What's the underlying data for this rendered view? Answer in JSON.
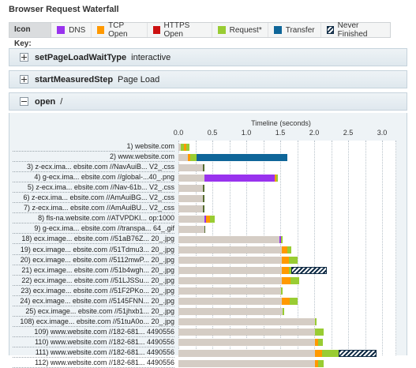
{
  "page_title": "Browser Request Waterfall",
  "icon_key": {
    "label": "Icon Key:",
    "items": [
      {
        "name": "DNS",
        "color": "#9933ee"
      },
      {
        "name": "TCP Open",
        "color": "#ff9900"
      },
      {
        "name": "HTTPS Open",
        "color": "#cc1111"
      },
      {
        "name": "Request*",
        "color": "#99cc33"
      },
      {
        "name": "Transfer",
        "color": "#0f6699"
      },
      {
        "name": "Never Finished",
        "color": "hatch"
      }
    ]
  },
  "panels": [
    {
      "name": "setPageLoadWaitType",
      "value": "interactive",
      "expanded": false
    },
    {
      "name": "startMeasuredStep",
      "value": "Page Load",
      "expanded": false
    },
    {
      "name": "open",
      "value": "/",
      "expanded": true
    }
  ],
  "colors": {
    "wait": "#d5cdc5"
  },
  "chart_data": {
    "type": "waterfall",
    "title": "Timeline (seconds)",
    "x_ticks": [
      "0.0",
      "0.5",
      "1.0",
      "1.5",
      "2.0",
      "2.5",
      "3.0"
    ],
    "xlim": [
      0,
      3.2
    ],
    "rows": [
      {
        "label": "1) website.com",
        "segments": [
          {
            "kind": "wait",
            "start": 0,
            "end": 0.03
          },
          {
            "kind": "request",
            "start": 0.03,
            "end": 0.08
          },
          {
            "kind": "tcp",
            "start": 0.08,
            "end": 0.12
          },
          {
            "kind": "request",
            "start": 0.12,
            "end": 0.16
          }
        ]
      },
      {
        "label": "2) www.website.com",
        "segments": [
          {
            "kind": "wait",
            "start": 0,
            "end": 0.14
          },
          {
            "kind": "tcp",
            "start": 0.14,
            "end": 0.18
          },
          {
            "kind": "request",
            "start": 0.18,
            "end": 0.27
          },
          {
            "kind": "transfer",
            "start": 0.27,
            "end": 1.61
          }
        ]
      },
      {
        "label": "3) z-ecx.ima... ebsite.com //NavAuiB... V2_.css",
        "segments": [
          {
            "kind": "wait",
            "start": 0,
            "end": 0.36
          },
          {
            "kind": "dark",
            "start": 0.36,
            "end": 0.38
          }
        ]
      },
      {
        "label": "4) g-ecx.ima... ebsite.com //global-...40_.png",
        "segments": [
          {
            "kind": "wait",
            "start": 0,
            "end": 0.38
          },
          {
            "kind": "dns",
            "start": 0.38,
            "end": 1.42
          },
          {
            "kind": "tcp",
            "start": 1.42,
            "end": 1.44
          },
          {
            "kind": "request",
            "start": 1.44,
            "end": 1.47
          }
        ]
      },
      {
        "label": "5) z-ecx.ima... ebsite.com //Nav-61b... V2_.css",
        "segments": [
          {
            "kind": "wait",
            "start": 0,
            "end": 0.36
          },
          {
            "kind": "dark",
            "start": 0.36,
            "end": 0.38
          }
        ]
      },
      {
        "label": "6) z-ecx.ima... ebsite.com //AmAuiBG... V2_.css",
        "segments": [
          {
            "kind": "wait",
            "start": 0,
            "end": 0.36
          },
          {
            "kind": "dark",
            "start": 0.36,
            "end": 0.38
          }
        ]
      },
      {
        "label": "7) z-ecx.ima... ebsite.com //AmAuiBU... V2_.css",
        "segments": [
          {
            "kind": "wait",
            "start": 0,
            "end": 0.36
          },
          {
            "kind": "dark",
            "start": 0.36,
            "end": 0.38
          }
        ]
      },
      {
        "label": "8) fls-na.website.com //ATVPDKI... op:1000",
        "segments": [
          {
            "kind": "wait",
            "start": 0,
            "end": 0.38
          },
          {
            "kind": "dns",
            "start": 0.38,
            "end": 0.41
          },
          {
            "kind": "tcp",
            "start": 0.41,
            "end": 0.46
          },
          {
            "kind": "request",
            "start": 0.46,
            "end": 0.54
          }
        ]
      },
      {
        "label": "9) g-ecx.ima... ebsite.com //transpa... 64_.gif",
        "segments": [
          {
            "kind": "wait",
            "start": 0,
            "end": 0.38
          },
          {
            "kind": "dark",
            "start": 0.38,
            "end": 0.4
          }
        ]
      },
      {
        "label": "18) ecx.image... ebsite.com //51aB76Z... 20_.jpg",
        "segments": [
          {
            "kind": "wait",
            "start": 0,
            "end": 1.49
          },
          {
            "kind": "dns",
            "start": 1.49,
            "end": 1.51
          },
          {
            "kind": "request",
            "start": 1.51,
            "end": 1.54
          }
        ]
      },
      {
        "label": "19) ecx.image... ebsite.com //51Tdmu3... 20_.jpg",
        "segments": [
          {
            "kind": "wait",
            "start": 0,
            "end": 1.52
          },
          {
            "kind": "tcp",
            "start": 1.52,
            "end": 1.6
          },
          {
            "kind": "request",
            "start": 1.6,
            "end": 1.66
          }
        ]
      },
      {
        "label": "20) ecx.image... ebsite.com //5112mwP... 20_.jpg",
        "segments": [
          {
            "kind": "wait",
            "start": 0,
            "end": 1.52
          },
          {
            "kind": "tcp",
            "start": 1.52,
            "end": 1.63
          },
          {
            "kind": "request",
            "start": 1.63,
            "end": 1.76
          }
        ]
      },
      {
        "label": "21) ecx.image... ebsite.com //51b4wgh... 20_.jpg",
        "segments": [
          {
            "kind": "wait",
            "start": 0,
            "end": 1.52
          },
          {
            "kind": "tcp",
            "start": 1.52,
            "end": 1.63
          },
          {
            "kind": "request",
            "start": 1.63,
            "end": 1.66
          },
          {
            "kind": "never",
            "start": 1.66,
            "end": 2.19
          }
        ]
      },
      {
        "label": "22) ecx.image... ebsite.com //51LJSSu... 20_.jpg",
        "segments": [
          {
            "kind": "wait",
            "start": 0,
            "end": 1.52
          },
          {
            "kind": "tcp",
            "start": 1.52,
            "end": 1.65
          },
          {
            "kind": "request",
            "start": 1.65,
            "end": 1.78
          }
        ]
      },
      {
        "label": "23) ecx.image... ebsite.com //51F2PKo... 20_.jpg",
        "segments": [
          {
            "kind": "wait",
            "start": 0,
            "end": 1.51
          },
          {
            "kind": "request",
            "start": 1.51,
            "end": 1.53
          }
        ]
      },
      {
        "label": "24) ecx.image... ebsite.com //5145FNN... 20_.jpg",
        "segments": [
          {
            "kind": "wait",
            "start": 0,
            "end": 1.52
          },
          {
            "kind": "tcp",
            "start": 1.52,
            "end": 1.64
          },
          {
            "kind": "request",
            "start": 1.64,
            "end": 1.76
          }
        ]
      },
      {
        "label": "25) ecx.image... ebsite.com //51jhxb1... 20_.jpg",
        "segments": [
          {
            "kind": "wait",
            "start": 0,
            "end": 1.53
          },
          {
            "kind": "request",
            "start": 1.53,
            "end": 1.56
          }
        ]
      },
      {
        "label": "108) ecx.image... ebsite.com //51tuA0o... 20_.jpg",
        "segments": [
          {
            "kind": "wait",
            "start": 0,
            "end": 2.01
          },
          {
            "kind": "request",
            "start": 2.01,
            "end": 2.04
          }
        ]
      },
      {
        "label": "109) www.website.com //182-681... 4490556",
        "segments": [
          {
            "kind": "wait",
            "start": 0,
            "end": 2.01
          },
          {
            "kind": "request",
            "start": 2.01,
            "end": 2.14
          }
        ]
      },
      {
        "label": "110) www.website.com //182-681... 4490556",
        "segments": [
          {
            "kind": "wait",
            "start": 0,
            "end": 2.01
          },
          {
            "kind": "tcp",
            "start": 2.01,
            "end": 2.06
          },
          {
            "kind": "request",
            "start": 2.06,
            "end": 2.13
          }
        ]
      },
      {
        "label": "111) www.website.com //182-681... 4490556",
        "segments": [
          {
            "kind": "wait",
            "start": 0,
            "end": 2.01
          },
          {
            "kind": "tcp",
            "start": 2.01,
            "end": 2.12
          },
          {
            "kind": "request",
            "start": 2.12,
            "end": 2.36
          },
          {
            "kind": "never",
            "start": 2.36,
            "end": 2.92
          }
        ]
      },
      {
        "label": "112) www.website.com //182-681... 4490556",
        "segments": [
          {
            "kind": "wait",
            "start": 0,
            "end": 2.01
          },
          {
            "kind": "tcp",
            "start": 2.01,
            "end": 2.06
          },
          {
            "kind": "request",
            "start": 2.06,
            "end": 2.14
          }
        ]
      }
    ]
  }
}
